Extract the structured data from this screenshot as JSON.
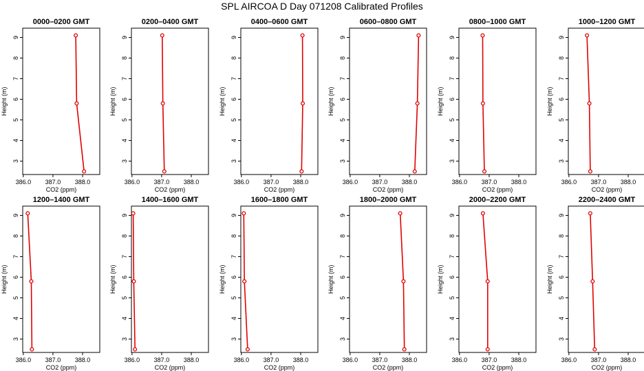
{
  "figure": {
    "title": "SPL AIRCOA D  Day 071208  Calibrated Profiles",
    "xlabel": "CO2 (ppm)",
    "ylabel": "Height (m)",
    "x_tick_labels": [
      "386.0",
      "387.0",
      "388.0"
    ],
    "y_tick_labels": [
      "3",
      "4",
      "5",
      "6",
      "7",
      "8",
      "9"
    ],
    "line_color": "#e00000"
  },
  "chart_data": [
    {
      "type": "line",
      "title": "0000–0200 GMT",
      "x": [
        388.05,
        387.8,
        387.77
      ],
      "y": [
        2.5,
        5.8,
        9.1
      ],
      "xlim": [
        385.98,
        388.58
      ],
      "ylim": [
        2.35,
        9.45
      ]
    },
    {
      "type": "line",
      "title": "0200–0400 GMT",
      "x": [
        387.09,
        387.04,
        387.02
      ],
      "y": [
        2.5,
        5.8,
        9.1
      ],
      "xlim": [
        385.98,
        388.58
      ],
      "ylim": [
        2.35,
        9.45
      ]
    },
    {
      "type": "line",
      "title": "0400–0600 GMT",
      "x": [
        388.03,
        388.07,
        388.06
      ],
      "y": [
        2.5,
        5.8,
        9.1
      ],
      "xlim": [
        385.98,
        388.58
      ],
      "ylim": [
        2.35,
        9.45
      ]
    },
    {
      "type": "line",
      "title": "0600–0800 GMT",
      "x": [
        388.18,
        388.27,
        388.31
      ],
      "y": [
        2.5,
        5.8,
        9.1
      ],
      "xlim": [
        385.98,
        388.58
      ],
      "ylim": [
        2.35,
        9.45
      ]
    },
    {
      "type": "line",
      "title": "0800–1000 GMT",
      "x": [
        386.84,
        386.79,
        386.78
      ],
      "y": [
        2.5,
        5.8,
        9.1
      ],
      "xlim": [
        385.98,
        388.58
      ],
      "ylim": [
        2.35,
        9.45
      ]
    },
    {
      "type": "line",
      "title": "1000–1200 GMT",
      "x": [
        386.72,
        386.69,
        386.61
      ],
      "y": [
        2.5,
        5.8,
        9.1
      ],
      "xlim": [
        385.98,
        388.58
      ],
      "ylim": [
        2.35,
        9.45
      ]
    },
    {
      "type": "line",
      "title": "1200–1400 GMT",
      "x": [
        386.29,
        386.27,
        386.15
      ],
      "y": [
        2.5,
        5.8,
        9.1
      ],
      "xlim": [
        385.98,
        388.58
      ],
      "ylim": [
        2.35,
        9.45
      ]
    },
    {
      "type": "line",
      "title": "1400–1600 GMT",
      "x": [
        386.1,
        386.06,
        386.04
      ],
      "y": [
        2.5,
        5.8,
        9.1
      ],
      "xlim": [
        385.98,
        388.58
      ],
      "ylim": [
        2.35,
        9.45
      ]
    },
    {
      "type": "line",
      "title": "1600–1800 GMT",
      "x": [
        386.21,
        386.1,
        386.08
      ],
      "y": [
        2.5,
        5.8,
        9.1
      ],
      "xlim": [
        385.98,
        388.58
      ],
      "ylim": [
        2.35,
        9.45
      ]
    },
    {
      "type": "line",
      "title": "1800–2000 GMT",
      "x": [
        387.83,
        387.8,
        387.69
      ],
      "y": [
        2.5,
        5.8,
        9.1
      ],
      "xlim": [
        385.98,
        388.58
      ],
      "ylim": [
        2.35,
        9.45
      ]
    },
    {
      "type": "line",
      "title": "2000–2200 GMT",
      "x": [
        386.95,
        386.95,
        386.79
      ],
      "y": [
        2.5,
        5.8,
        9.1
      ],
      "xlim": [
        385.98,
        388.58
      ],
      "ylim": [
        2.35,
        9.45
      ]
    },
    {
      "type": "line",
      "title": "2200–2400 GMT",
      "x": [
        386.87,
        386.8,
        386.72
      ],
      "y": [
        2.5,
        5.8,
        9.1
      ],
      "xlim": [
        385.98,
        388.58
      ],
      "ylim": [
        2.35,
        9.45
      ]
    }
  ]
}
